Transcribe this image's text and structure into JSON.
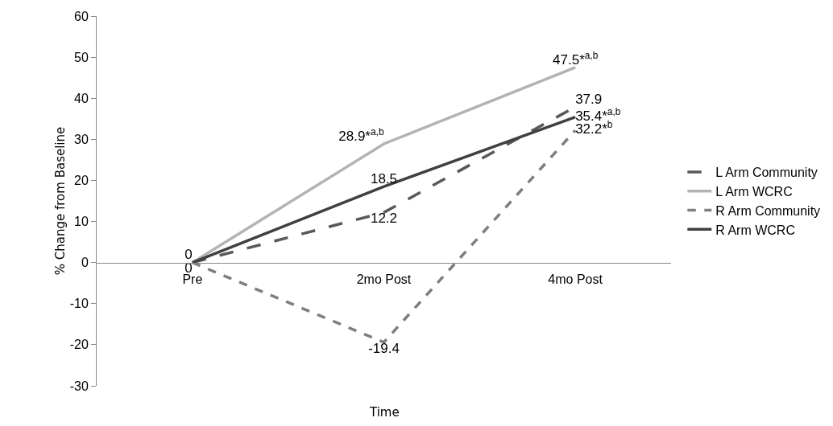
{
  "chart_data": {
    "type": "line",
    "xlabel": "Time",
    "ylabel": "% Change from Baseline",
    "categories": [
      "Pre",
      "2mo Post",
      "4mo Post"
    ],
    "ylim": [
      -30,
      60
    ],
    "yticks": [
      -30,
      -20,
      -10,
      0,
      10,
      20,
      30,
      40,
      50,
      60
    ],
    "grid": false,
    "legend": "right",
    "marker": "none",
    "series": [
      {
        "name": "L Arm Community",
        "color": "#595959",
        "line_style": "dashed",
        "values": [
          0,
          12.2,
          37.9
        ],
        "value_labels": [
          "0",
          "12.2",
          "37.9"
        ]
      },
      {
        "name": "L Arm WCRC",
        "color": "#b3b3b3",
        "line_style": "solid",
        "values": [
          0,
          28.9,
          47.5
        ],
        "value_labels": [
          null,
          "28.9*$^{a,b}$",
          "47.5*$^{a,b}$"
        ]
      },
      {
        "name": "R Arm Community",
        "color": "#7f7f7f",
        "line_style": "dotted",
        "values": [
          0,
          -19.4,
          32.2
        ],
        "value_labels": [
          "0",
          "-19.4",
          "32.2*$^{b}$"
        ]
      },
      {
        "name": "R Arm WCRC",
        "color": "#404040",
        "line_style": "solid",
        "values": [
          0,
          18.5,
          35.4
        ],
        "value_labels": [
          null,
          "18.5",
          "35.4*$^{a,b}$"
        ]
      }
    ]
  }
}
